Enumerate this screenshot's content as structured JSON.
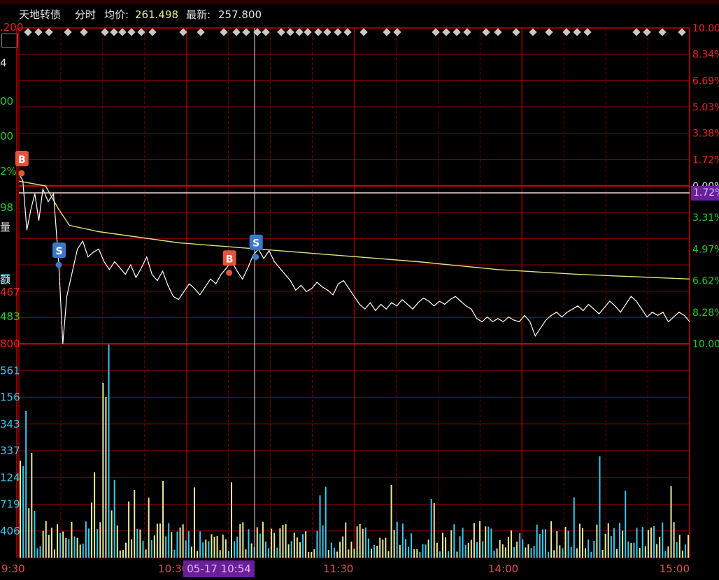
{
  "header": {
    "stock_name": "天地转债",
    "view_mode": "分时",
    "avg_label": "均价:",
    "avg_value": "261.498",
    "last_label": "最新:",
    "last_value": "257.800"
  },
  "left_axis_labels": [
    ".200",
    "4",
    "00",
    "00",
    "2%",
    "98",
    "量",
    "额",
    "万",
    "467",
    "483",
    "800"
  ],
  "volume_axis_labels": [
    "561",
    "156",
    "343",
    "337",
    "124",
    "719",
    "406"
  ],
  "crosshair": {
    "time_label": "05-17 10:54",
    "price_badge": "1.72%"
  },
  "colors": {
    "up": "#ff3333",
    "down": "#33ccff",
    "price_line": "#ffffff",
    "avg_line": "#e0e080",
    "grid": "#8b0000"
  },
  "chart_data": {
    "type": "line",
    "title": "天地转债",
    "x_ticks": [
      "9:30",
      "10:30",
      "11:30",
      "14:00",
      "15:00"
    ],
    "right_pct_ticks_top": [
      "10.00%",
      "8.34%",
      "6.69%",
      "5.03%",
      "3.38%",
      "1.72%",
      "0.00%"
    ],
    "right_pct_ticks_bottom": [
      "1.72%",
      "3.31%",
      "4.97%",
      "6.62%",
      "8.28%",
      "10.00%"
    ],
    "pct_range": [
      -10,
      10
    ],
    "price_series": [
      {
        "t": 0,
        "p": 0.8
      },
      {
        "t": 3,
        "p": 0.3
      },
      {
        "t": 6,
        "p": -2.8
      },
      {
        "t": 9,
        "p": -1.5
      },
      {
        "t": 12,
        "p": -0.5
      },
      {
        "t": 15,
        "p": -2.2
      },
      {
        "t": 18,
        "p": -0.2
      },
      {
        "t": 22,
        "p": -1.0
      },
      {
        "t": 26,
        "p": -0.5
      },
      {
        "t": 30,
        "p": -5.0
      },
      {
        "t": 33,
        "p": -10.0
      },
      {
        "t": 36,
        "p": -7.0
      },
      {
        "t": 40,
        "p": -5.5
      },
      {
        "t": 44,
        "p": -4.0
      },
      {
        "t": 48,
        "p": -3.5
      },
      {
        "t": 52,
        "p": -4.5
      },
      {
        "t": 56,
        "p": -4.2
      },
      {
        "t": 60,
        "p": -4.0
      },
      {
        "t": 64,
        "p": -4.8
      },
      {
        "t": 68,
        "p": -5.3
      },
      {
        "t": 72,
        "p": -4.8
      },
      {
        "t": 76,
        "p": -5.2
      },
      {
        "t": 80,
        "p": -5.6
      },
      {
        "t": 84,
        "p": -5.0
      },
      {
        "t": 88,
        "p": -5.8
      },
      {
        "t": 92,
        "p": -5.2
      },
      {
        "t": 96,
        "p": -4.5
      },
      {
        "t": 100,
        "p": -5.6
      },
      {
        "t": 104,
        "p": -6.0
      },
      {
        "t": 108,
        "p": -5.4
      },
      {
        "t": 112,
        "p": -6.3
      },
      {
        "t": 116,
        "p": -7.0
      },
      {
        "t": 120,
        "p": -7.2
      },
      {
        "t": 124,
        "p": -6.7
      },
      {
        "t": 128,
        "p": -6.2
      },
      {
        "t": 132,
        "p": -6.5
      },
      {
        "t": 136,
        "p": -6.9
      },
      {
        "t": 140,
        "p": -6.4
      },
      {
        "t": 144,
        "p": -5.9
      },
      {
        "t": 148,
        "p": -6.2
      },
      {
        "t": 152,
        "p": -5.6
      },
      {
        "t": 156,
        "p": -5.2
      },
      {
        "t": 160,
        "p": -4.8
      },
      {
        "t": 164,
        "p": -5.4
      },
      {
        "t": 168,
        "p": -5.9
      },
      {
        "t": 172,
        "p": -5.2
      },
      {
        "t": 176,
        "p": -4.4
      },
      {
        "t": 180,
        "p": -4.0
      },
      {
        "t": 184,
        "p": -4.6
      },
      {
        "t": 188,
        "p": -4.1
      },
      {
        "t": 192,
        "p": -4.8
      },
      {
        "t": 196,
        "p": -5.2
      },
      {
        "t": 200,
        "p": -5.6
      },
      {
        "t": 204,
        "p": -6.0
      },
      {
        "t": 208,
        "p": -6.6
      },
      {
        "t": 212,
        "p": -6.3
      },
      {
        "t": 216,
        "p": -6.7
      },
      {
        "t": 220,
        "p": -6.5
      },
      {
        "t": 224,
        "p": -6.1
      },
      {
        "t": 228,
        "p": -6.4
      },
      {
        "t": 232,
        "p": -6.6
      },
      {
        "t": 236,
        "p": -6.9
      },
      {
        "t": 240,
        "p": -6.2
      },
      {
        "t": 244,
        "p": -6.0
      },
      {
        "t": 248,
        "p": -6.5
      },
      {
        "t": 252,
        "p": -7.0
      },
      {
        "t": 256,
        "p": -7.5
      },
      {
        "t": 260,
        "p": -7.8
      },
      {
        "t": 264,
        "p": -7.4
      },
      {
        "t": 268,
        "p": -7.9
      },
      {
        "t": 272,
        "p": -7.5
      },
      {
        "t": 276,
        "p": -7.8
      },
      {
        "t": 280,
        "p": -7.4
      },
      {
        "t": 284,
        "p": -7.6
      },
      {
        "t": 288,
        "p": -7.2
      },
      {
        "t": 292,
        "p": -7.5
      },
      {
        "t": 296,
        "p": -7.8
      },
      {
        "t": 300,
        "p": -7.4
      },
      {
        "t": 304,
        "p": -7.1
      },
      {
        "t": 308,
        "p": -7.3
      },
      {
        "t": 312,
        "p": -7.6
      },
      {
        "t": 316,
        "p": -7.3
      },
      {
        "t": 320,
        "p": -7.5
      },
      {
        "t": 324,
        "p": -7.2
      },
      {
        "t": 328,
        "p": -7.0
      },
      {
        "t": 332,
        "p": -7.3
      },
      {
        "t": 336,
        "p": -7.6
      },
      {
        "t": 340,
        "p": -7.8
      },
      {
        "t": 344,
        "p": -8.4
      },
      {
        "t": 348,
        "p": -8.6
      },
      {
        "t": 352,
        "p": -8.3
      },
      {
        "t": 356,
        "p": -8.6
      },
      {
        "t": 360,
        "p": -8.4
      },
      {
        "t": 364,
        "p": -8.6
      },
      {
        "t": 368,
        "p": -8.3
      },
      {
        "t": 372,
        "p": -8.5
      },
      {
        "t": 376,
        "p": -8.6
      },
      {
        "t": 380,
        "p": -8.2
      },
      {
        "t": 384,
        "p": -8.6
      },
      {
        "t": 388,
        "p": -9.5
      },
      {
        "t": 392,
        "p": -9.0
      },
      {
        "t": 396,
        "p": -8.5
      },
      {
        "t": 400,
        "p": -8.2
      },
      {
        "t": 404,
        "p": -8.0
      },
      {
        "t": 408,
        "p": -8.3
      },
      {
        "t": 412,
        "p": -8.0
      },
      {
        "t": 416,
        "p": -7.8
      },
      {
        "t": 420,
        "p": -7.6
      },
      {
        "t": 424,
        "p": -7.9
      },
      {
        "t": 428,
        "p": -7.5
      },
      {
        "t": 432,
        "p": -7.8
      },
      {
        "t": 436,
        "p": -8.1
      },
      {
        "t": 440,
        "p": -7.7
      },
      {
        "t": 444,
        "p": -7.3
      },
      {
        "t": 448,
        "p": -7.6
      },
      {
        "t": 452,
        "p": -8.0
      },
      {
        "t": 456,
        "p": -7.5
      },
      {
        "t": 460,
        "p": -7.0
      },
      {
        "t": 464,
        "p": -7.3
      },
      {
        "t": 468,
        "p": -7.8
      },
      {
        "t": 472,
        "p": -8.3
      },
      {
        "t": 476,
        "p": -8.0
      },
      {
        "t": 480,
        "p": -8.2
      },
      {
        "t": 484,
        "p": -8.0
      },
      {
        "t": 488,
        "p": -8.6
      },
      {
        "t": 492,
        "p": -8.3
      },
      {
        "t": 496,
        "p": -8.0
      },
      {
        "t": 500,
        "p": -8.2
      },
      {
        "t": 504,
        "p": -8.6
      }
    ],
    "avg_series": [
      {
        "t": 0,
        "p": 0.3
      },
      {
        "t": 20,
        "p": 0.0
      },
      {
        "t": 30,
        "p": -1.5
      },
      {
        "t": 38,
        "p": -2.5
      },
      {
        "t": 60,
        "p": -2.9
      },
      {
        "t": 120,
        "p": -3.6
      },
      {
        "t": 180,
        "p": -4.0
      },
      {
        "t": 240,
        "p": -4.4
      },
      {
        "t": 300,
        "p": -4.8
      },
      {
        "t": 360,
        "p": -5.3
      },
      {
        "t": 420,
        "p": -5.6
      },
      {
        "t": 504,
        "p": -5.9
      }
    ],
    "trade_markers": [
      {
        "type": "B",
        "t": 2,
        "p": 0.8
      },
      {
        "type": "S",
        "t": 30,
        "p": -5.0
      },
      {
        "type": "B",
        "t": 158,
        "p": -5.5
      },
      {
        "type": "S",
        "t": 178,
        "p": -4.5
      }
    ],
    "volume_range": [
      0,
      1
    ]
  }
}
